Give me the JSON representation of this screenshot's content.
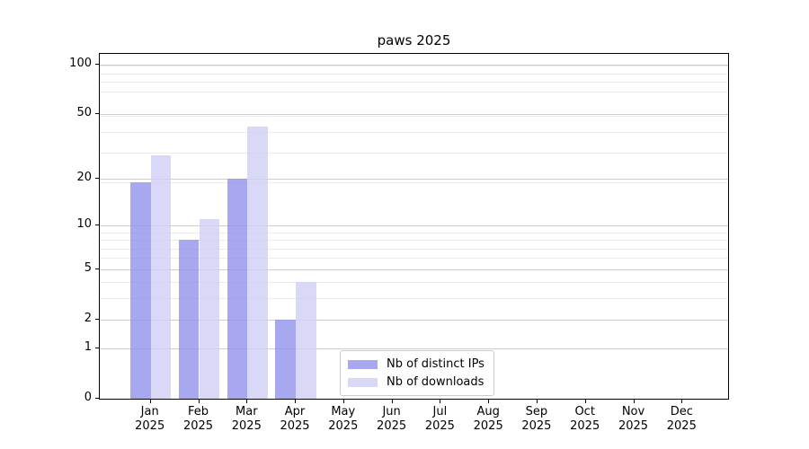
{
  "figure": {
    "background": "#ffffff"
  },
  "chart_data": {
    "type": "bar",
    "title": "paws 2025",
    "months": [
      "Jan",
      "Feb",
      "Mar",
      "Apr",
      "May",
      "Jun",
      "Jul",
      "Aug",
      "Sep",
      "Oct",
      "Nov",
      "Dec"
    ],
    "year": "2025",
    "series": [
      {
        "name": "Nb of distinct IPs",
        "color": "#9292ee",
        "fill_alpha": 0.8,
        "values": [
          19,
          8,
          20,
          2,
          0,
          0,
          0,
          0,
          0,
          0,
          0,
          0
        ]
      },
      {
        "name": "Nb of downloads",
        "color": "#cfcff5",
        "fill_alpha": 0.8,
        "values": [
          28,
          11,
          42,
          4,
          0,
          0,
          0,
          0,
          0,
          0,
          0,
          0
        ]
      }
    ],
    "yscale": "log1p",
    "yticks": [
      0,
      1,
      2,
      5,
      10,
      20,
      50,
      100
    ],
    "y_minor_gridlines": [
      3,
      4,
      6,
      7,
      8,
      9,
      19,
      29,
      39,
      49,
      69,
      79,
      89,
      99
    ],
    "ylim": [
      0,
      118
    ],
    "xlabel": "",
    "ylabel": "",
    "grid": true,
    "legend_position": "lower center",
    "colors": {
      "major_grid": "#cccccc",
      "minor_grid": "#ebebeb",
      "axis": "#000000",
      "text": "#000000"
    }
  }
}
